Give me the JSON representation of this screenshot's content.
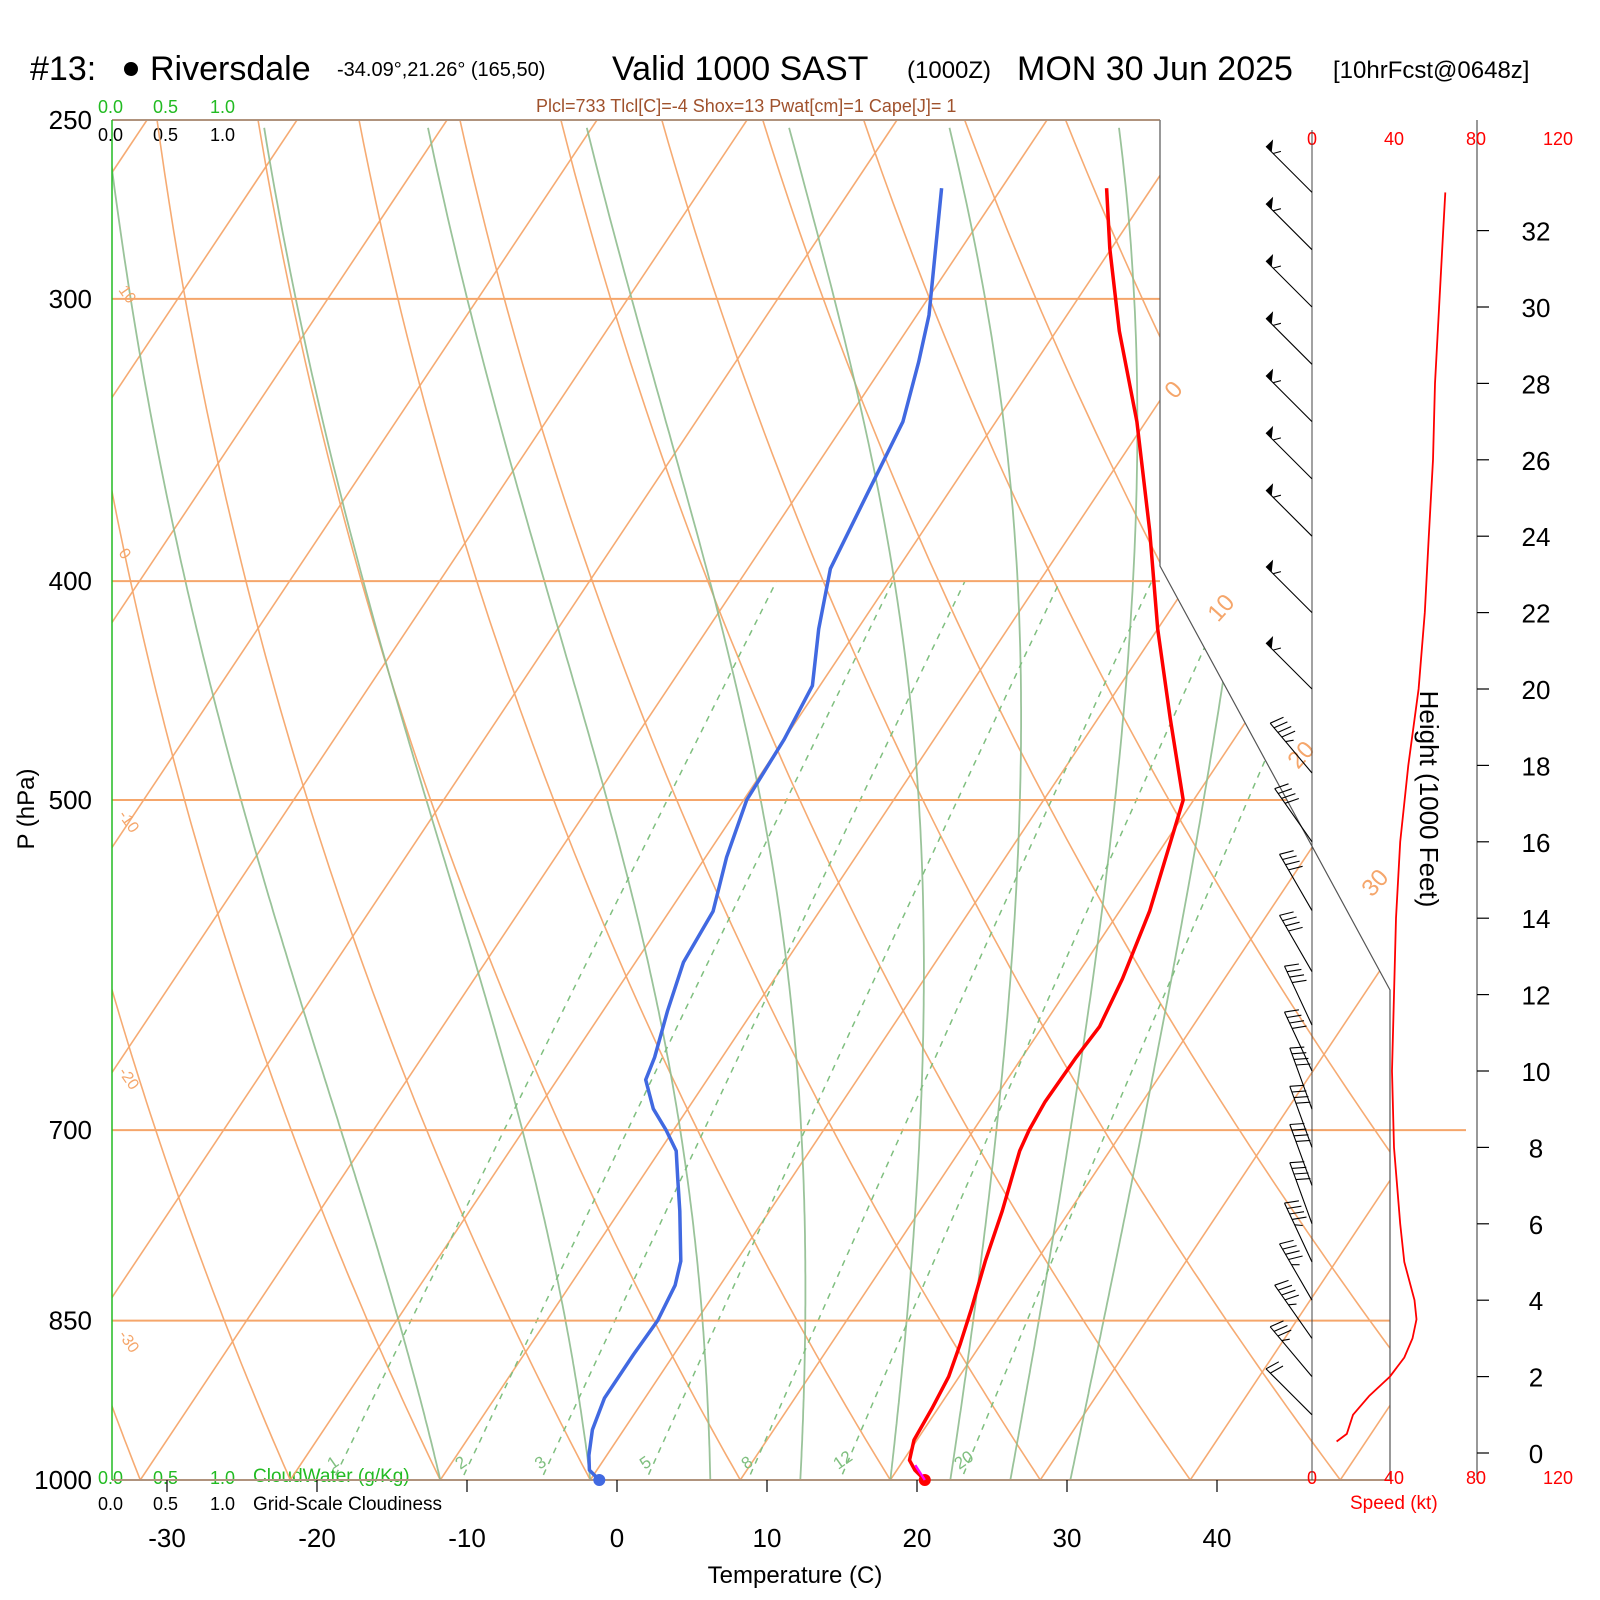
{
  "header": {
    "station_id": "#13:",
    "station_name": "Riversdale",
    "station_coords": "-34.09°,21.26° (165,50)",
    "valid_label": "Valid 1000 SAST",
    "utc_label": "(1000Z)",
    "date_label": "MON 30 Jun 2025",
    "forecast_label": "[10hrFcst@0648z]",
    "indices": "Plcl=733 Tlcl[C]=-4 Shox=13 Pwat[cm]=1 Cape[J]= 1"
  },
  "cloud_scale": {
    "top_green": [
      "0.0",
      "0.5",
      "1.0"
    ],
    "top_black": [
      "0.0",
      "0.5",
      "1.0"
    ],
    "bottom_green": [
      "0.0",
      "0.5",
      "1.0"
    ],
    "bottom_black": [
      "0.0",
      "0.5",
      "1.0"
    ],
    "cloudwater_label": "CloudWater (g/Kg)",
    "cloudiness_label": "Grid-Scale Cloudiness"
  },
  "colors": {
    "temperature": "#ff0000",
    "dewpoint": "#4169e1",
    "isotherm": "#f5a66b",
    "dry_adiabat": "#f5a66b",
    "moist_adiabat": "#8fbc8f",
    "mixing_ratio": "#7fbf7f",
    "wind_speed": "#ff0000",
    "cloud_green": "#22bb22",
    "indices_text": "#a0522d"
  },
  "chart_data": {
    "type": "line",
    "title": "Riversdale",
    "xlabel": "Temperature (C)",
    "ylabel": "P (hPa)",
    "right_label": "Height (1000 Feet)",
    "speed_label": "Speed (kt)",
    "xlim": [
      -33,
      36
    ],
    "pressure_ticks": [
      250,
      300,
      400,
      500,
      700,
      850,
      1000
    ],
    "temperature_ticks": [
      -30,
      -20,
      -10,
      0,
      10,
      20,
      30,
      40
    ],
    "height_ticks": [
      0,
      2,
      4,
      6,
      8,
      10,
      12,
      14,
      16,
      18,
      20,
      22,
      24,
      26,
      28,
      30,
      32
    ],
    "speed_ticks": [
      0,
      40,
      80,
      120
    ],
    "speed_ticks_bottom": [
      0,
      40,
      80,
      120
    ],
    "mixing_ratio_labels": [
      "1",
      "2",
      "3",
      "5",
      "8",
      "12",
      "20"
    ],
    "mixing_ratio_values": [
      1,
      2,
      3,
      5,
      8,
      12,
      20
    ],
    "isotherm_labels": [
      "10",
      "0",
      "-10",
      "-20",
      "-30"
    ],
    "isotherm_label_values": [
      10,
      0,
      -10,
      -20,
      -30
    ],
    "skew_labels": [
      "0",
      "10",
      "20",
      "30"
    ],
    "skew_label_values": [
      0,
      10,
      20,
      30
    ],
    "series": [
      {
        "key": "temperature",
        "p": [
          1000,
          990,
          980,
          960,
          930,
          900,
          870,
          840,
          800,
          760,
          730,
          715,
          700,
          680,
          650,
          630,
          600,
          560,
          500,
          460,
          420,
          380,
          340,
          310,
          285,
          268
        ],
        "t": [
          22.3,
          21.2,
          20.4,
          19.8,
          19.6,
          19.3,
          18.6,
          17.8,
          16.6,
          15.5,
          14.5,
          14.0,
          13.7,
          13.5,
          13.6,
          13.8,
          13.2,
          12.0,
          9.3,
          4.8,
          0.0,
          -4.9,
          -10.6,
          -15.8,
          -20.1,
          -23.0
        ]
      },
      {
        "key": "dewpoint",
        "p": [
          1000,
          990,
          975,
          950,
          920,
          880,
          850,
          820,
          800,
          760,
          735,
          715,
          700,
          685,
          665,
          650,
          620,
          590,
          560,
          530,
          500,
          470,
          445,
          420,
          395,
          365,
          340,
          320,
          305,
          268
        ],
        "t": [
          0.6,
          -0.5,
          -1.2,
          -2.1,
          -2.7,
          -2.7,
          -2.6,
          -3.0,
          -3.7,
          -6.0,
          -7.6,
          -8.9,
          -10.5,
          -12.3,
          -14.1,
          -14.5,
          -15.7,
          -16.8,
          -17.1,
          -18.6,
          -19.8,
          -20.0,
          -20.5,
          -22.6,
          -24.5,
          -25.4,
          -26.2,
          -27.8,
          -29.2,
          -34.0
        ]
      }
    ],
    "wind_speed_profile": {
      "height_kft": [
        0.3,
        0.5,
        1.0,
        1.5,
        2.0,
        2.5,
        3.0,
        3.5,
        4.0,
        5.0,
        6.0,
        8.0,
        10.0,
        12.0,
        14.0,
        16.0,
        18.0,
        20.0,
        22.0,
        24.0,
        26.0,
        28.0,
        30.0,
        32.0,
        33.0
      ],
      "speed_kt": [
        12,
        17,
        20,
        28,
        38,
        45,
        49,
        51,
        50,
        45,
        43,
        40,
        39,
        40,
        41,
        43,
        47,
        52,
        55,
        57,
        59,
        60,
        62,
        64,
        65
      ]
    },
    "wind_barbs": [
      {
        "height_kft": 33.0,
        "dir_deg": 315,
        "speed_kt": 55
      },
      {
        "height_kft": 31.5,
        "dir_deg": 315,
        "speed_kt": 55
      },
      {
        "height_kft": 30.0,
        "dir_deg": 315,
        "speed_kt": 55
      },
      {
        "height_kft": 28.5,
        "dir_deg": 315,
        "speed_kt": 55
      },
      {
        "height_kft": 27.0,
        "dir_deg": 315,
        "speed_kt": 55
      },
      {
        "height_kft": 25.5,
        "dir_deg": 315,
        "speed_kt": 55
      },
      {
        "height_kft": 24.0,
        "dir_deg": 315,
        "speed_kt": 55
      },
      {
        "height_kft": 22.0,
        "dir_deg": 315,
        "speed_kt": 55
      },
      {
        "height_kft": 20.0,
        "dir_deg": 315,
        "speed_kt": 55
      },
      {
        "height_kft": 17.8,
        "dir_deg": 320,
        "speed_kt": 45
      },
      {
        "height_kft": 16.0,
        "dir_deg": 325,
        "speed_kt": 40
      },
      {
        "height_kft": 14.2,
        "dir_deg": 330,
        "speed_kt": 40
      },
      {
        "height_kft": 12.6,
        "dir_deg": 330,
        "speed_kt": 40
      },
      {
        "height_kft": 11.2,
        "dir_deg": 335,
        "speed_kt": 40
      },
      {
        "height_kft": 10.0,
        "dir_deg": 335,
        "speed_kt": 40
      },
      {
        "height_kft": 9.0,
        "dir_deg": 340,
        "speed_kt": 40
      },
      {
        "height_kft": 8.0,
        "dir_deg": 340,
        "speed_kt": 40
      },
      {
        "height_kft": 7.0,
        "dir_deg": 340,
        "speed_kt": 40
      },
      {
        "height_kft": 6.0,
        "dir_deg": 340,
        "speed_kt": 40
      },
      {
        "height_kft": 5.0,
        "dir_deg": 335,
        "speed_kt": 45
      },
      {
        "height_kft": 4.0,
        "dir_deg": 330,
        "speed_kt": 45
      },
      {
        "height_kft": 3.0,
        "dir_deg": 325,
        "speed_kt": 45
      },
      {
        "height_kft": 2.0,
        "dir_deg": 320,
        "speed_kt": 35
      },
      {
        "height_kft": 1.0,
        "dir_deg": 315,
        "speed_kt": 20
      }
    ]
  }
}
